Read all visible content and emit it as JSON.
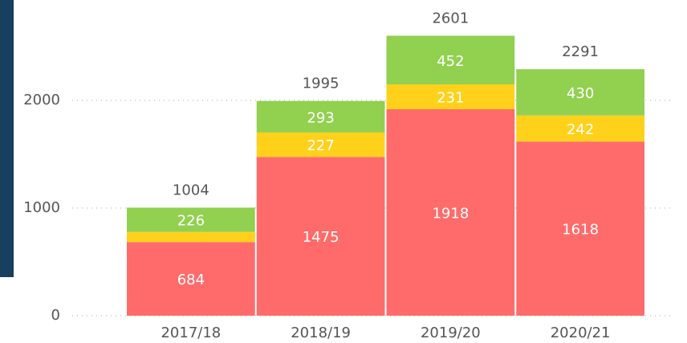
{
  "chart_data": {
    "type": "stacked_bar",
    "categories": [
      "2017/18",
      "2018/19",
      "2019/20",
      "2020/21"
    ],
    "series": [
      {
        "color": "#ff6b6b",
        "values": [
          684,
          1475,
          1918,
          1618
        ]
      },
      {
        "color": "#ffd11a",
        "values": [
          94,
          227,
          231,
          242
        ]
      },
      {
        "color": "#92d050",
        "values": [
          226,
          293,
          452,
          430
        ]
      }
    ],
    "totals": [
      1004,
      1995,
      2601,
      2291
    ],
    "ylim": [
      0,
      2900
    ],
    "yticks": [
      0,
      1000,
      2000
    ],
    "grid": true
  }
}
